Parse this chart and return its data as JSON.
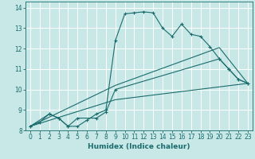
{
  "title": "",
  "xlabel": "Humidex (Indice chaleur)",
  "bg_color": "#c8e8e8",
  "grid_color": "#ffffff",
  "line_color": "#1a6b6b",
  "xlim": [
    -0.5,
    23.5
  ],
  "ylim": [
    8,
    14.3
  ],
  "xticks": [
    0,
    1,
    2,
    3,
    4,
    5,
    6,
    7,
    8,
    9,
    10,
    11,
    12,
    13,
    14,
    15,
    16,
    17,
    18,
    19,
    20,
    21,
    22,
    23
  ],
  "yticks": [
    8,
    9,
    10,
    11,
    12,
    13,
    14
  ],
  "series": [
    {
      "x": [
        0,
        1,
        2,
        3,
        4,
        5,
        6,
        7,
        8,
        9,
        10,
        11,
        12,
        13,
        14,
        15,
        16,
        17,
        18,
        19,
        20,
        21,
        22,
        23
      ],
      "y": [
        8.2,
        8.4,
        8.8,
        8.6,
        8.2,
        8.2,
        8.5,
        8.8,
        9.0,
        12.4,
        13.7,
        13.75,
        13.8,
        13.75,
        13.0,
        12.6,
        13.2,
        12.7,
        12.6,
        12.1,
        11.5,
        11.0,
        10.5,
        10.3
      ],
      "marker": "+"
    },
    {
      "x": [
        0,
        2,
        3,
        4,
        5,
        7,
        8,
        9,
        20,
        21,
        22,
        23
      ],
      "y": [
        8.2,
        8.8,
        8.6,
        8.2,
        8.6,
        8.6,
        8.9,
        10.0,
        11.5,
        11.0,
        10.5,
        10.3
      ],
      "marker": "+"
    },
    {
      "x": [
        0,
        9,
        20,
        23
      ],
      "y": [
        8.2,
        10.2,
        12.05,
        10.3
      ],
      "marker": null
    },
    {
      "x": [
        0,
        9,
        23
      ],
      "y": [
        8.2,
        9.5,
        10.3
      ],
      "marker": null
    }
  ]
}
